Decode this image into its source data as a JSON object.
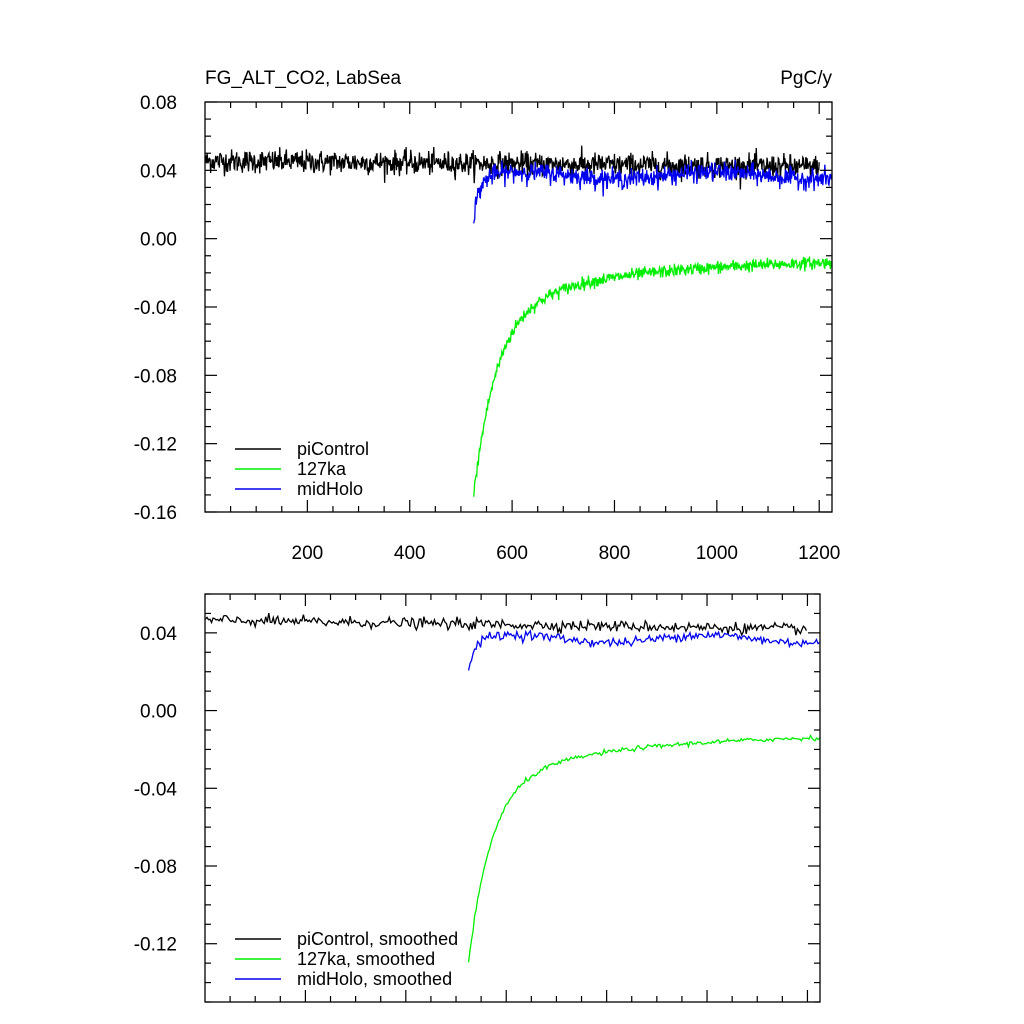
{
  "chart_data": [
    {
      "type": "line",
      "title_left": "FG_ALT_CO2, LabSea",
      "title_right": "PgC/y",
      "xlabel": "",
      "ylabel": "",
      "xlim": [
        0,
        1225
      ],
      "ylim": [
        -0.16,
        0.08
      ],
      "x_major_ticks": [
        200,
        400,
        600,
        800,
        1000,
        1200
      ],
      "x_tick_labels": [
        "200",
        "400",
        "600",
        "800",
        "1000",
        "1200"
      ],
      "y_major_ticks": [
        0.08,
        0.04,
        0.0,
        -0.04,
        -0.08,
        -0.12,
        -0.16
      ],
      "y_tick_labels": [
        "0.08",
        "0.04",
        "0.00",
        "-0.04",
        "-0.08",
        "-0.12",
        "-0.16"
      ],
      "legend_position": "bottom-left",
      "series": [
        {
          "name": "piControl",
          "color": "#000000",
          "x_start": 1,
          "x_end": 1200,
          "mean": 0.043,
          "noise": 0.0034,
          "description": "roughly flat near 0.045 early, easing to about 0.042 by year 1200"
        },
        {
          "name": "127ka",
          "color": "#00ee00",
          "x_start": 525,
          "x_end": 1225,
          "start_value": -0.15,
          "end_value": -0.014,
          "noise": 0.0018,
          "description": "rapid recovery from about -0.15 at year 525 to about -0.03 by year 650, then slow approach to about -0.014"
        },
        {
          "name": "midHolo",
          "color": "#0000ee",
          "x_start": 525,
          "x_end": 1225,
          "start_value": 0.013,
          "end_value": 0.037,
          "noise": 0.0028,
          "description": "jumps from about 0.013 at year 525 to about 0.035 by year 560, then stays near 0.037"
        }
      ]
    },
    {
      "type": "line",
      "title_left": "",
      "title_right": "",
      "xlabel": "",
      "ylabel": "",
      "xlim": [
        0,
        1225
      ],
      "ylim": [
        -0.15,
        0.06
      ],
      "x_major_ticks": [
        200,
        400,
        600,
        800,
        1000,
        1200
      ],
      "x_tick_labels": [],
      "y_major_ticks": [
        0.04,
        0.0,
        -0.04,
        -0.08,
        -0.12
      ],
      "y_tick_labels": [
        "0.04",
        "0.00",
        "-0.04",
        "-0.08",
        "-0.12"
      ],
      "legend_position": "bottom-left",
      "series": [
        {
          "name": "piControl, smoothed",
          "color": "#000000",
          "x_start": 1,
          "x_end": 1200,
          "mean": 0.043,
          "noise": 0.0014,
          "description": "smoothed; about 0.046 early, about 0.042 late"
        },
        {
          "name": "127ka, smoothed",
          "color": "#00ee00",
          "x_start": 525,
          "x_end": 1225,
          "start_value": -0.13,
          "end_value": -0.014,
          "noise": 0.0006,
          "description": "smoothed; from about -0.13 at year 525 rising to about -0.014 at year 1225"
        },
        {
          "name": "midHolo, smoothed",
          "color": "#0000ee",
          "x_start": 525,
          "x_end": 1225,
          "start_value": 0.02,
          "end_value": 0.037,
          "noise": 0.0012,
          "description": "smoothed; from about 0.02 at year 525 to about 0.037"
        }
      ]
    }
  ]
}
